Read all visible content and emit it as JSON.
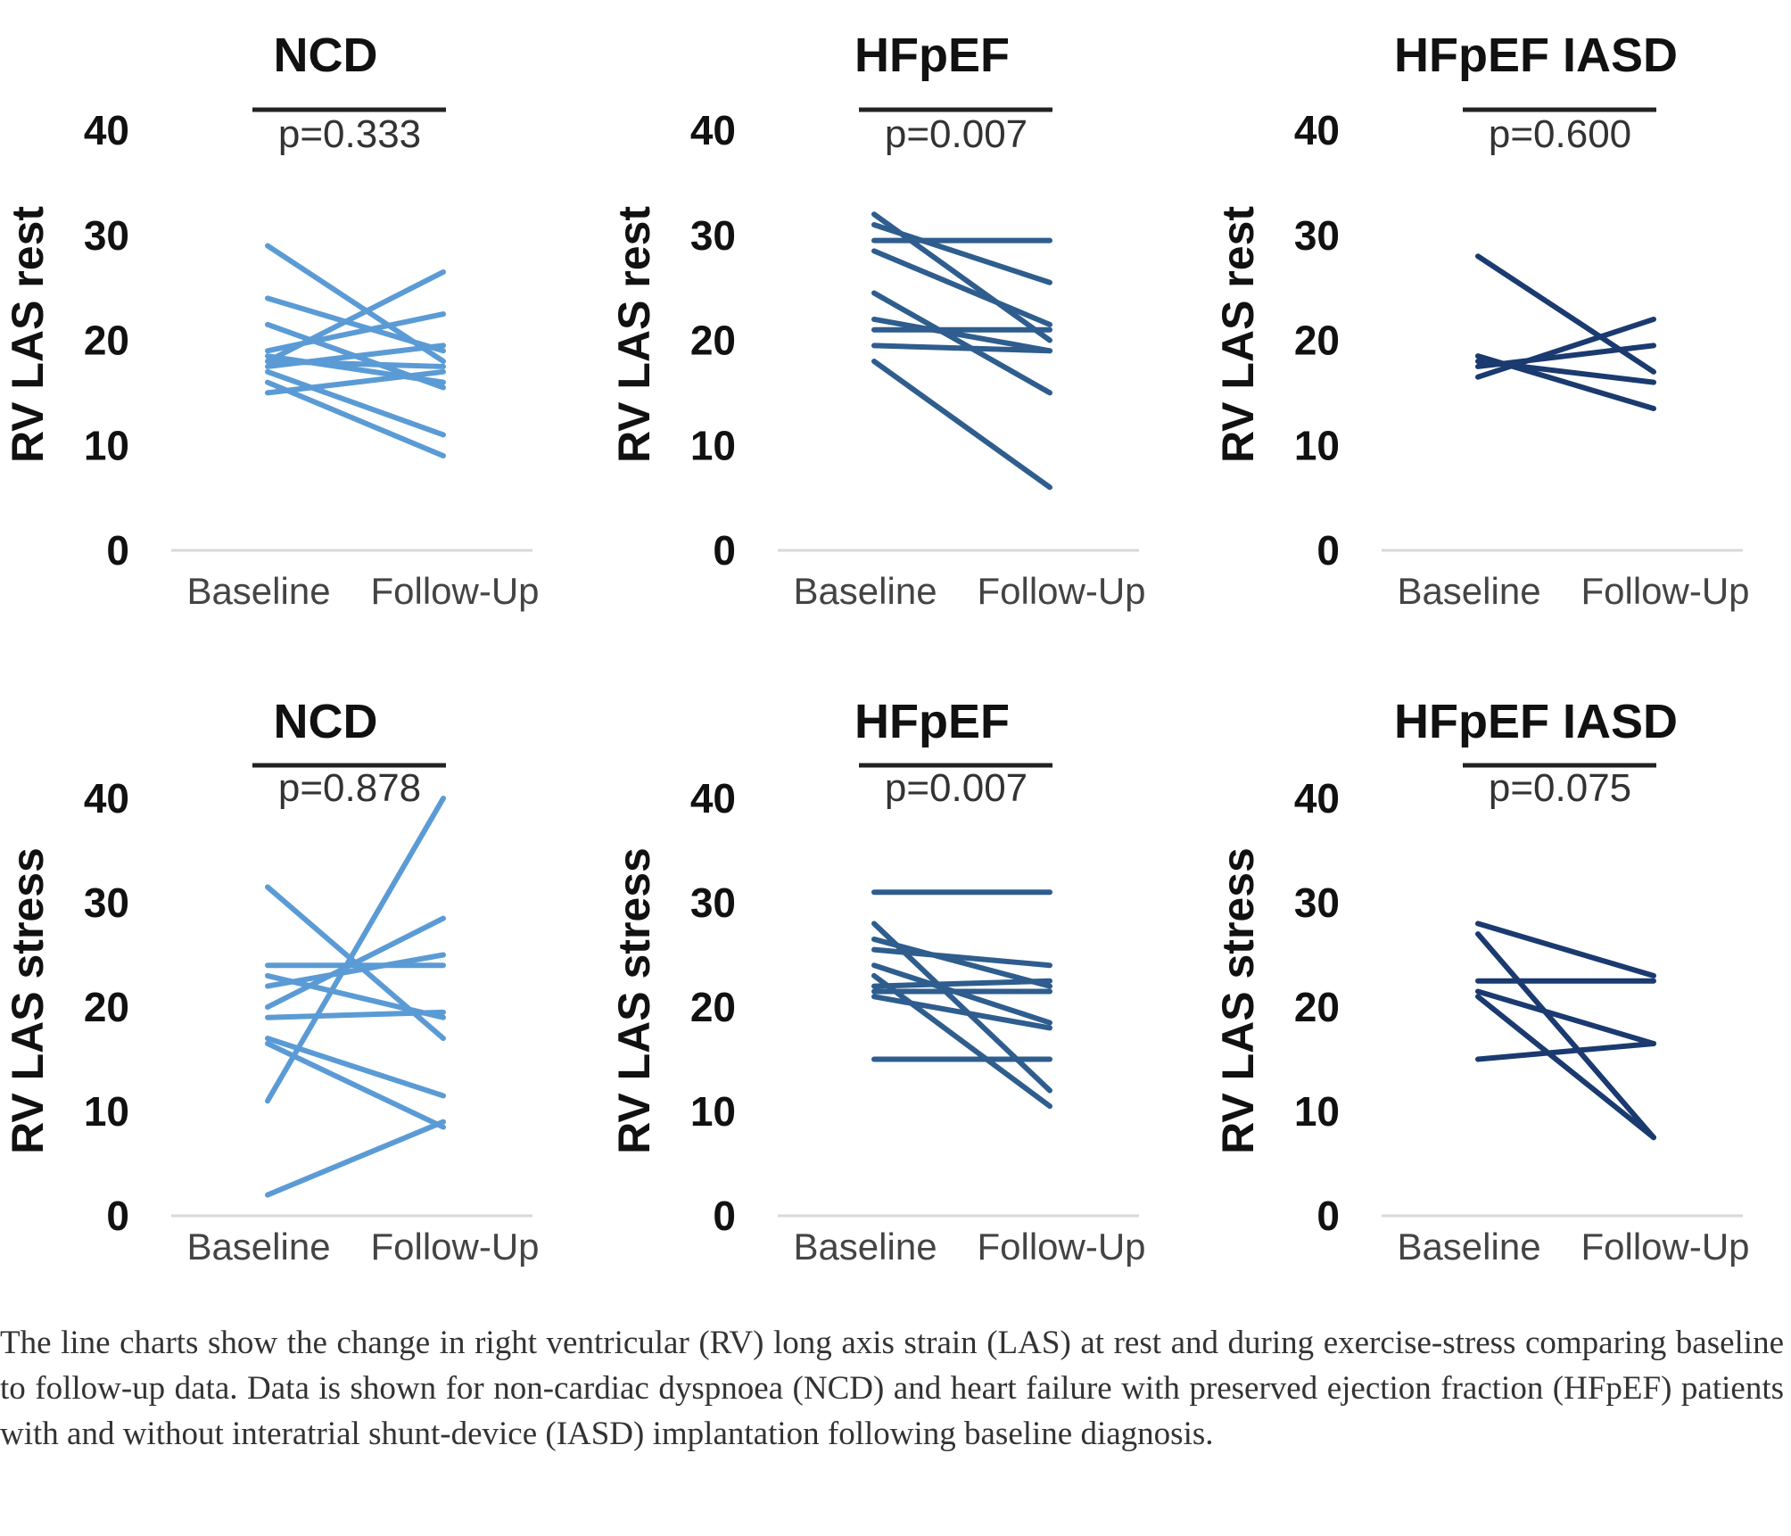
{
  "chart_data": [
    {
      "type": "line",
      "title": "NCD",
      "p_value": "p=0.333",
      "ylabel": "RV LAS rest",
      "categories": [
        "Baseline",
        "Follow-Up"
      ],
      "yticks": [
        "0",
        "10",
        "20",
        "30",
        "40"
      ],
      "ylim": [
        0,
        40
      ],
      "color": "#5b9bd5",
      "series": [
        [
          29,
          18
        ],
        [
          24,
          19
        ],
        [
          21.5,
          15.5
        ],
        [
          19,
          22.5
        ],
        [
          18.5,
          16
        ],
        [
          18,
          26.5
        ],
        [
          18,
          17.5
        ],
        [
          17.5,
          19.5
        ],
        [
          17,
          11
        ],
        [
          16,
          9
        ],
        [
          15,
          17
        ]
      ]
    },
    {
      "type": "line",
      "title": "HFpEF",
      "p_value": "p=0.007",
      "ylabel": "RV LAS rest",
      "categories": [
        "Baseline",
        "Follow-Up"
      ],
      "yticks": [
        "0",
        "10",
        "20",
        "30",
        "40"
      ],
      "ylim": [
        0,
        40
      ],
      "color": "#2e5d8e",
      "series": [
        [
          32,
          20
        ],
        [
          31,
          25.5
        ],
        [
          29.5,
          29.5
        ],
        [
          28.5,
          21.5
        ],
        [
          24.5,
          15
        ],
        [
          22,
          19
        ],
        [
          21,
          21
        ],
        [
          19.5,
          19
        ],
        [
          18,
          6
        ]
      ]
    },
    {
      "type": "line",
      "title": "HFpEF IASD",
      "p_value": "p=0.600",
      "ylabel": "RV LAS rest",
      "categories": [
        "Baseline",
        "Follow-Up"
      ],
      "yticks": [
        "0",
        "10",
        "20",
        "30",
        "40"
      ],
      "ylim": [
        0,
        40
      ],
      "color": "#1a3a70",
      "series": [
        [
          28,
          17
        ],
        [
          18.5,
          13.5
        ],
        [
          18,
          16
        ],
        [
          17.5,
          19.5
        ],
        [
          16.5,
          22
        ]
      ]
    },
    {
      "type": "line",
      "title": "NCD",
      "p_value": "p=0.878",
      "ylabel": "RV LAS stress",
      "categories": [
        "Baseline",
        "Follow-Up"
      ],
      "yticks": [
        "0",
        "10",
        "20",
        "30",
        "40"
      ],
      "ylim": [
        0,
        40
      ],
      "color": "#5b9bd5",
      "series": [
        [
          31.5,
          17
        ],
        [
          24,
          24
        ],
        [
          23,
          19
        ],
        [
          22,
          25
        ],
        [
          20,
          28.5
        ],
        [
          19,
          19.5
        ],
        [
          17,
          11.5
        ],
        [
          16.5,
          8.5
        ],
        [
          11,
          40
        ],
        [
          2,
          9
        ]
      ]
    },
    {
      "type": "line",
      "title": "HFpEF",
      "p_value": "p=0.007",
      "ylabel": "RV LAS stress",
      "categories": [
        "Baseline",
        "Follow-Up"
      ],
      "yticks": [
        "0",
        "10",
        "20",
        "30",
        "40"
      ],
      "ylim": [
        0,
        40
      ],
      "color": "#2e5d8e",
      "series": [
        [
          31,
          31
        ],
        [
          28,
          12
        ],
        [
          26.5,
          22
        ],
        [
          25.5,
          24
        ],
        [
          24,
          18.5
        ],
        [
          23,
          10.5
        ],
        [
          22,
          22.5
        ],
        [
          21.5,
          21.5
        ],
        [
          21,
          18
        ],
        [
          15,
          15
        ]
      ]
    },
    {
      "type": "line",
      "title": "HFpEF IASD",
      "p_value": "p=0.075",
      "ylabel": "RV LAS stress",
      "categories": [
        "Baseline",
        "Follow-Up"
      ],
      "yticks": [
        "0",
        "10",
        "20",
        "30",
        "40"
      ],
      "ylim": [
        0,
        40
      ],
      "color": "#1a3a70",
      "series": [
        [
          28,
          23
        ],
        [
          27,
          7.5
        ],
        [
          22.5,
          22.5
        ],
        [
          21.5,
          16.5
        ],
        [
          21,
          7.5
        ],
        [
          15,
          16.5
        ]
      ]
    }
  ],
  "caption": "The line charts show the change in right ventricular (RV) long axis strain (LAS) at rest and during exercise-stress comparing baseline to follow-up data. Data is shown for non-cardiac dyspnoea (NCD) and heart failure with preserved ejection fraction (HFpEF) patients with and without interatrial shunt-device (IASD) implantation following baseline diagnosis."
}
